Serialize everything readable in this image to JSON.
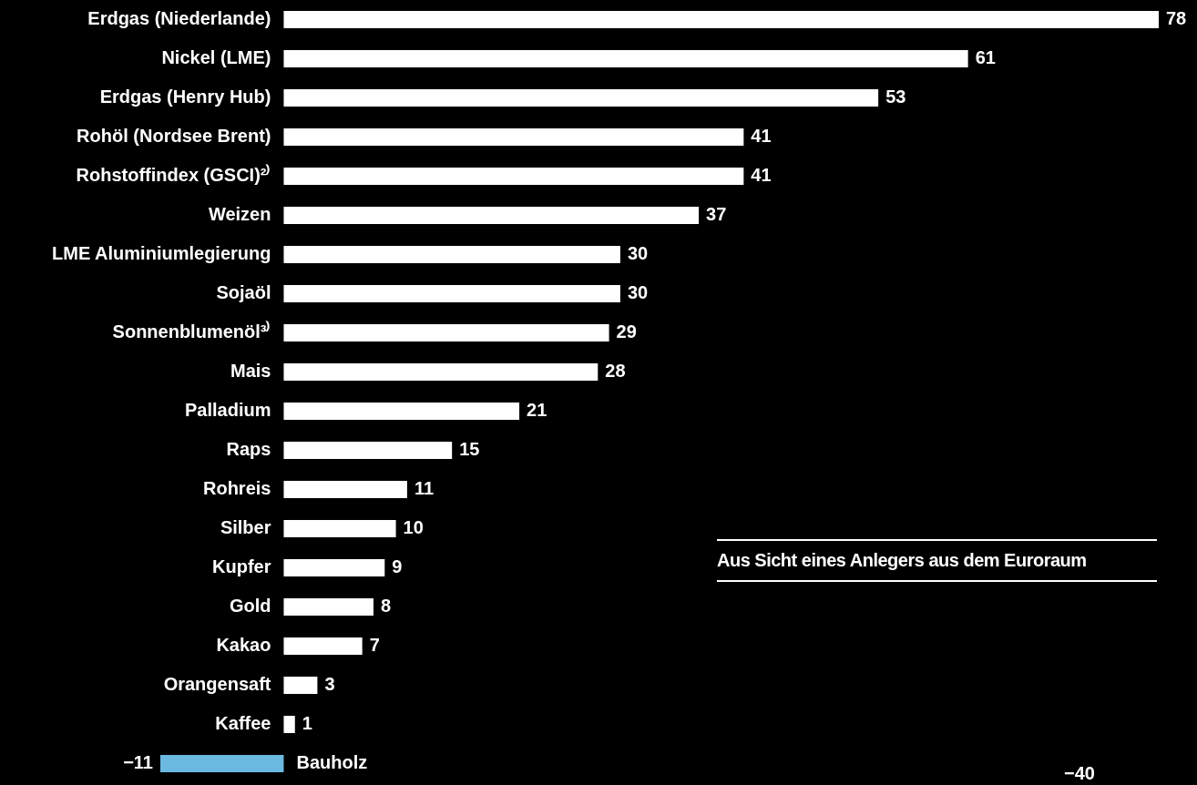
{
  "chart_data": {
    "type": "bar",
    "orientation": "horizontal",
    "categories": [
      "Erdgas (Niederlande)",
      "Nickel (LME)",
      "Erdgas (Henry Hub)",
      "Rohöl (Nordsee Brent)",
      "Rohstoffindex (GSCI)²⁾",
      "Weizen",
      "LME Aluminiumlegierung",
      "Sojaöl",
      "Sonnenblumenöl³⁾",
      "Mais",
      "Palladium",
      "Raps",
      "Rohreis",
      "Silber",
      "Kupfer",
      "Gold",
      "Kakao",
      "Orangensaft",
      "Kaffee",
      "Bauholz"
    ],
    "values": [
      78,
      61,
      53,
      41,
      41,
      37,
      30,
      30,
      29,
      28,
      21,
      15,
      11,
      10,
      9,
      8,
      7,
      3,
      1,
      -11
    ],
    "value_labels": [
      "78",
      "61",
      "53",
      "41",
      "41",
      "37",
      "30",
      "30",
      "29",
      "28",
      "21",
      "15",
      "11",
      "10",
      "9",
      "8",
      "7",
      "3",
      "1",
      "−11"
    ],
    "colors": [
      "#ffffff",
      "#ffffff",
      "#ffffff",
      "#ffffff",
      "#ffffff",
      "#ffffff",
      "#ffffff",
      "#ffffff",
      "#ffffff",
      "#ffffff",
      "#ffffff",
      "#ffffff",
      "#ffffff",
      "#ffffff",
      "#ffffff",
      "#ffffff",
      "#ffffff",
      "#ffffff",
      "#ffffff",
      "#6bb8e0"
    ],
    "legend": false,
    "annotations": [
      "Aus Sicht eines Anlegers aus dem Euroraum",
      "−40"
    ]
  }
}
